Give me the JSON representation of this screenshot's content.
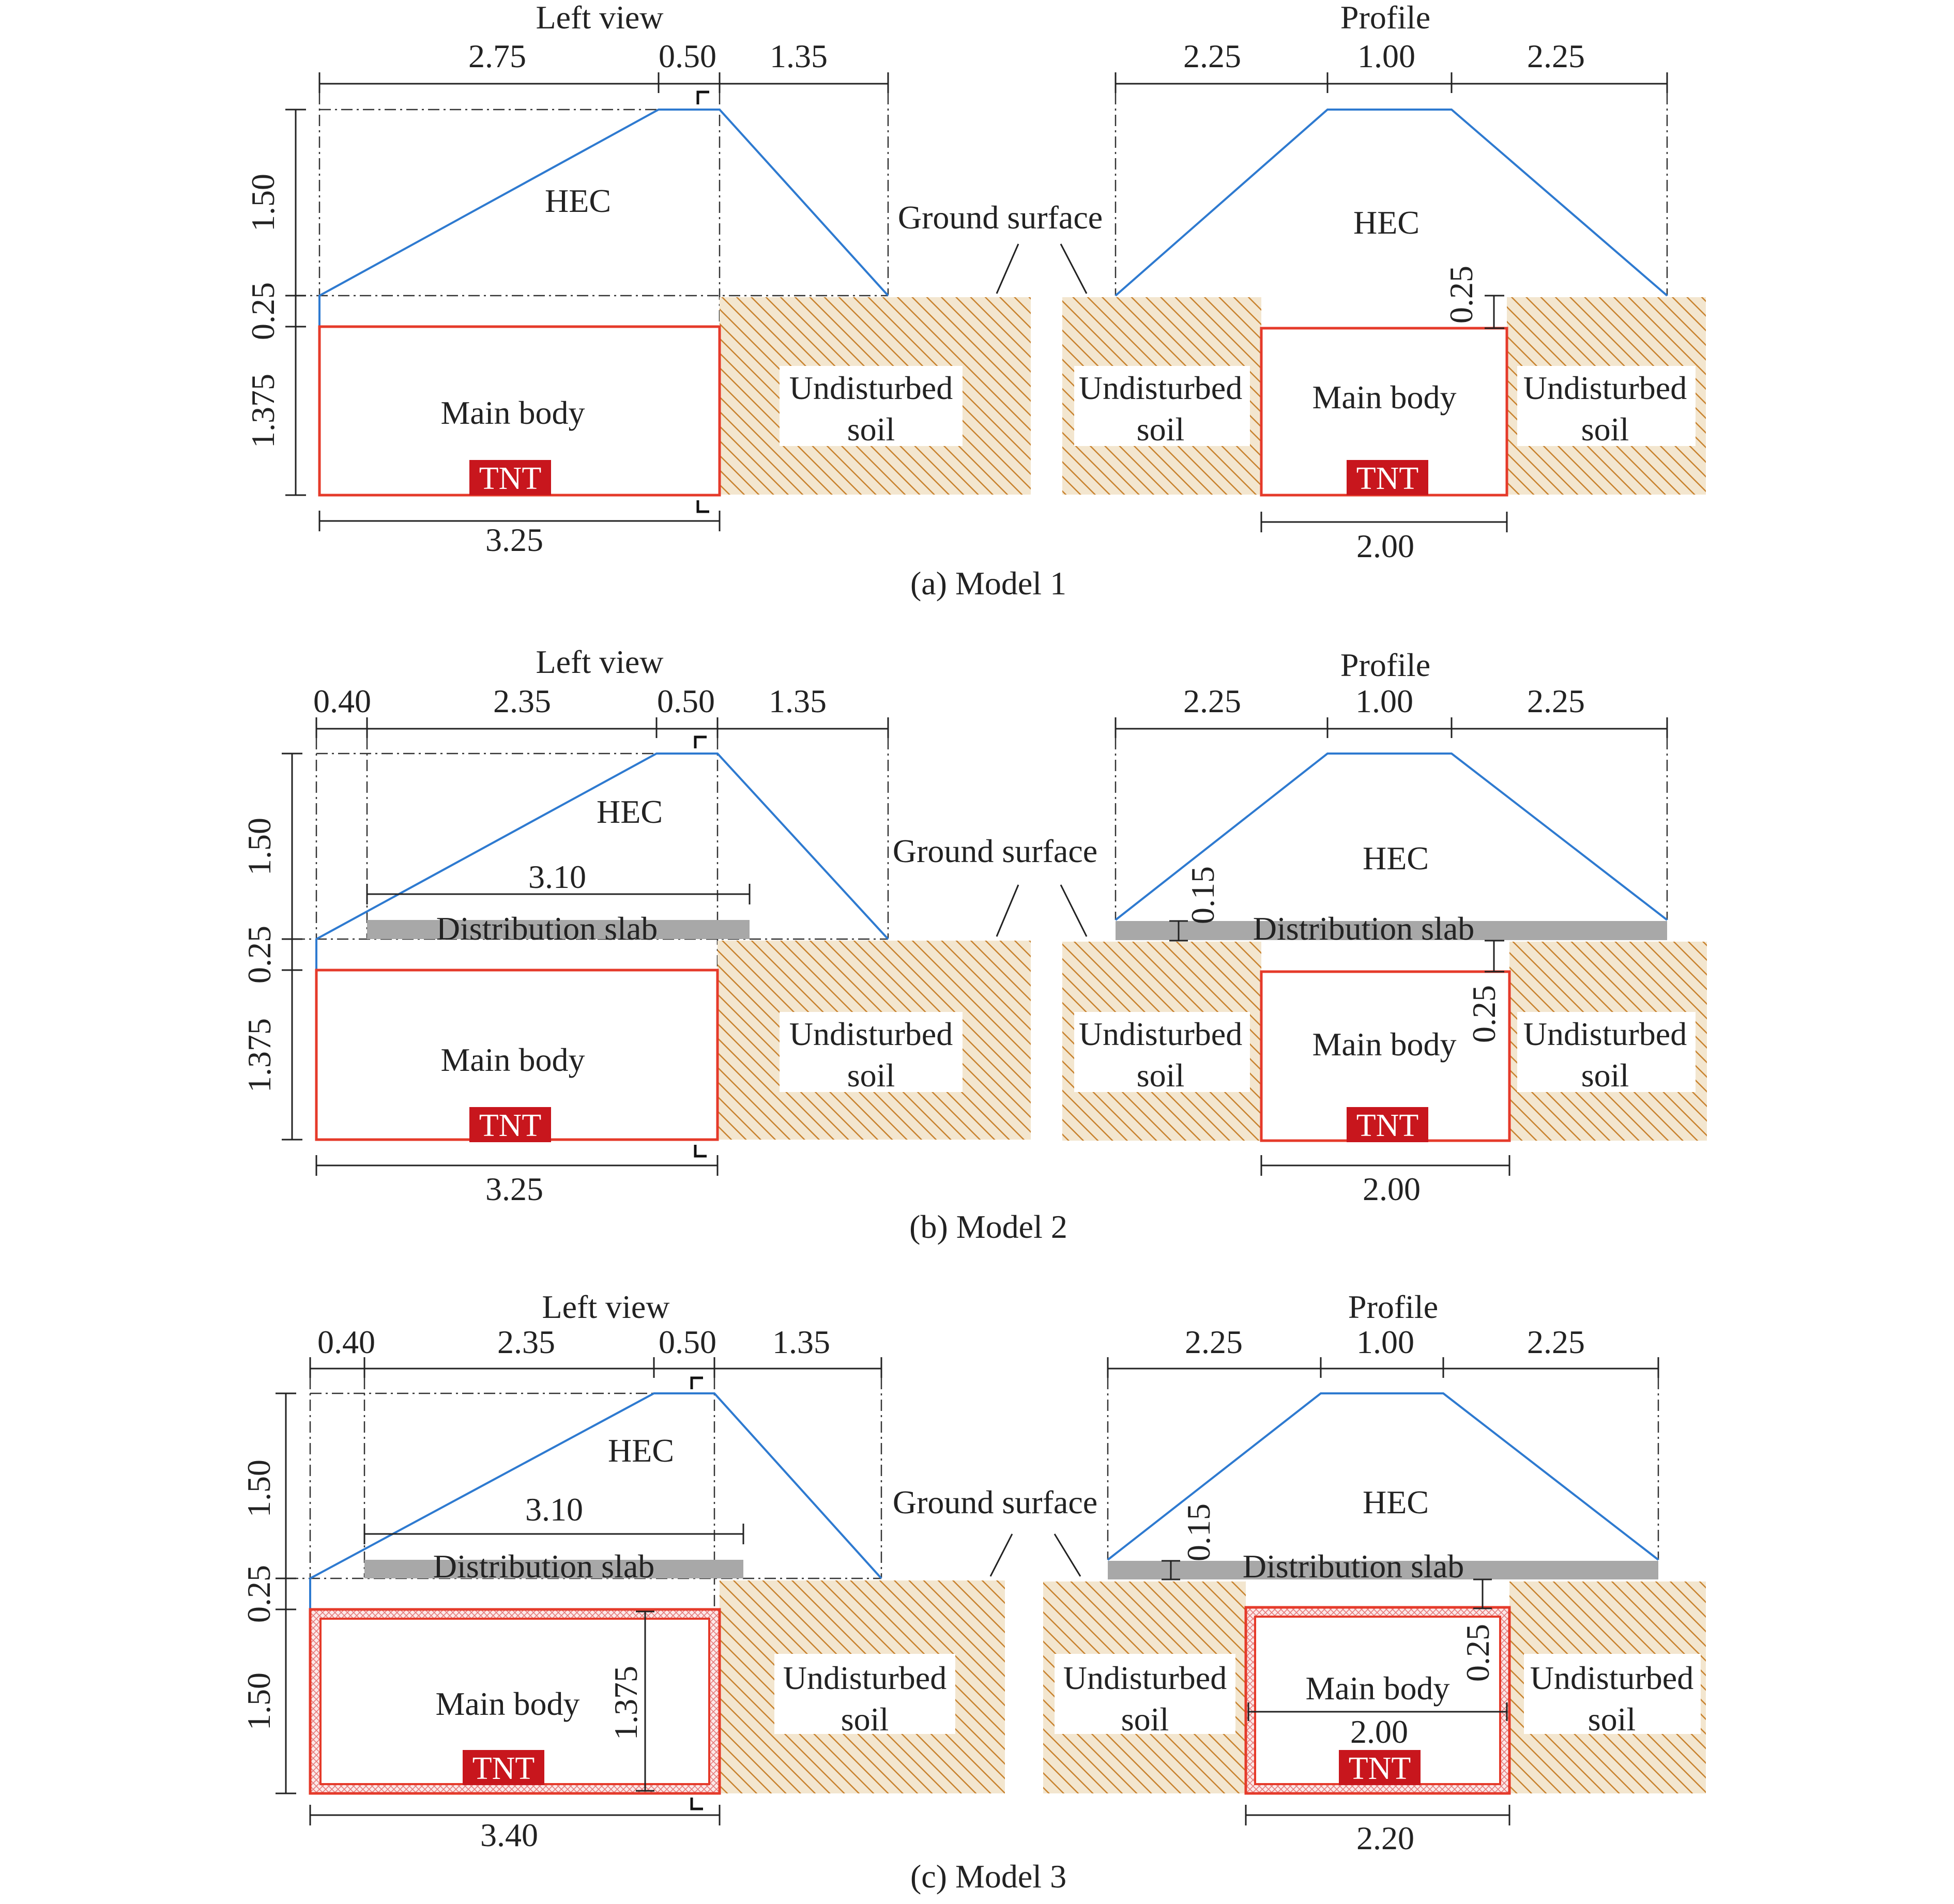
{
  "colors": {
    "hec_line": "#2e7ad0",
    "main_body_outline": "#e53a2a",
    "tnt_fill": "#c8161d",
    "soil_hatch": "#c8822e",
    "slab_fill": "#a8a8a8",
    "lining_hatch": "#e57a7a"
  },
  "labels": {
    "left_view": "Left view",
    "profile": "Profile",
    "hec": "HEC",
    "ground_surface": "Ground surface",
    "main_body": "Main body",
    "tnt": "TNT",
    "undisturbed": "Undisturbed",
    "soil": "soil",
    "distribution_slab": "Distribution slab"
  },
  "models": [
    {
      "caption": "(a) Model 1",
      "left_top_dims": [
        "2.75",
        "0.50",
        "1.35"
      ],
      "left_vert_dims": [
        "1.50",
        "0.25",
        "1.375"
      ],
      "left_bottom_dim": "3.25",
      "profile_top_dims": [
        "2.25",
        "1.00",
        "2.25"
      ],
      "profile_side_dims": [
        "0.25"
      ],
      "profile_bottom_dim": "2.00"
    },
    {
      "caption": "(b) Model 2",
      "left_top_dims": [
        "0.40",
        "2.35",
        "0.50",
        "1.35"
      ],
      "left_vert_dims": [
        "1.50",
        "0.25",
        "1.375"
      ],
      "left_slab_dim": "3.10",
      "left_bottom_dim": "3.25",
      "profile_top_dims": [
        "2.25",
        "1.00",
        "2.25"
      ],
      "profile_side_dims": [
        "0.15",
        "0.25"
      ],
      "profile_bottom_dim": "2.00"
    },
    {
      "caption": "(c) Model 3",
      "left_top_dims": [
        "0.40",
        "2.35",
        "0.50",
        "1.35"
      ],
      "left_vert_dims": [
        "1.50",
        "0.25",
        "1.50"
      ],
      "left_slab_dim": "3.10",
      "left_inner_dim": "1.375",
      "left_bottom_dim": "3.40",
      "profile_top_dims": [
        "2.25",
        "1.00",
        "2.25"
      ],
      "profile_side_dims": [
        "0.15",
        "0.25"
      ],
      "profile_inner_dim": "2.00",
      "profile_bottom_dim": "2.20"
    }
  ]
}
